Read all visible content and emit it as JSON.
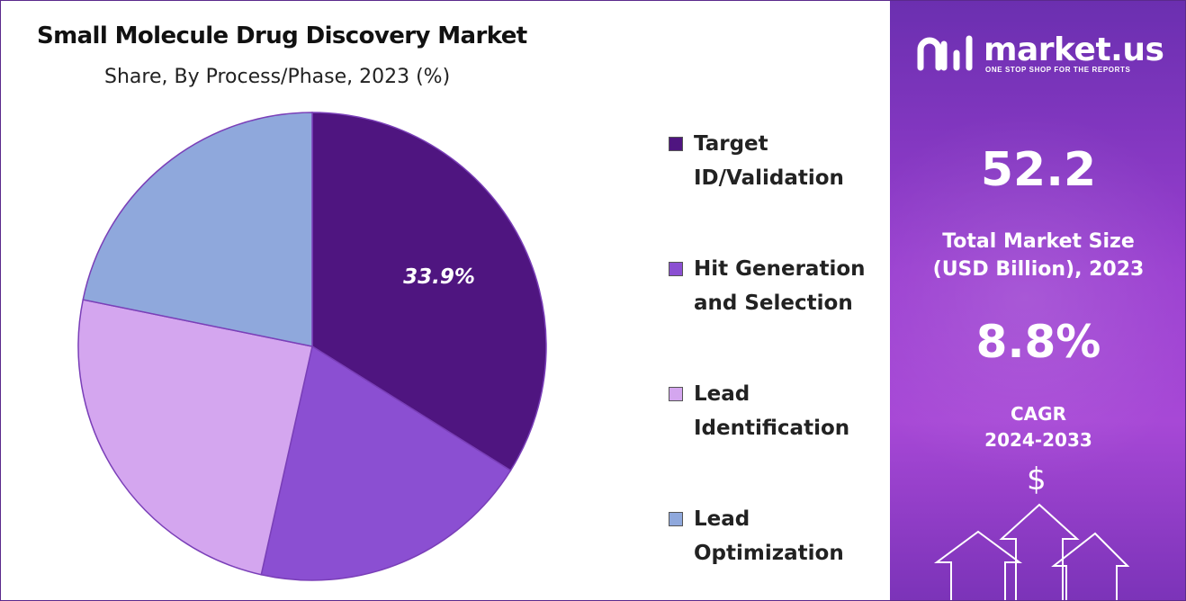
{
  "title": "Small Molecule Drug Discovery Market",
  "subtitle": "Share, By Process/Phase,  2023 (%)",
  "chart_data": {
    "type": "pie",
    "title": "Small Molecule Drug Discovery Market",
    "subtitle": "Share, By Process/Phase,  2023 (%)",
    "categories": [
      "Target ID/Validation",
      "Hit Generation and Selection",
      "Lead Identification",
      "Lead Optimization"
    ],
    "values": [
      33.9,
      19.6,
      24.7,
      21.8
    ],
    "data_labels": [
      "33.9%",
      "",
      "",
      ""
    ],
    "colors": [
      "#4f1580",
      "#8b4fd2",
      "#d4a6ef",
      "#8fa8dc"
    ],
    "legend_position": "right"
  },
  "legend": [
    {
      "label": "Target\nID/Validation",
      "color": "#4f1580"
    },
    {
      "label": "Hit Generation\nand Selection",
      "color": "#8b4fd2"
    },
    {
      "label": "Lead\nIdentification",
      "color": "#d4a6ef"
    },
    {
      "label": "Lead\nOptimization",
      "color": "#8fa8dc"
    }
  ],
  "panel": {
    "brand": "market.us",
    "tagline": "ONE STOP SHOP FOR THE REPORTS",
    "market_size_value": "52.2",
    "market_size_label": "Total Market Size\n(USD Billion), 2023",
    "cagr_value": "8.8%",
    "cagr_label": "CAGR\n2024-2033",
    "currency_symbol": "$"
  }
}
